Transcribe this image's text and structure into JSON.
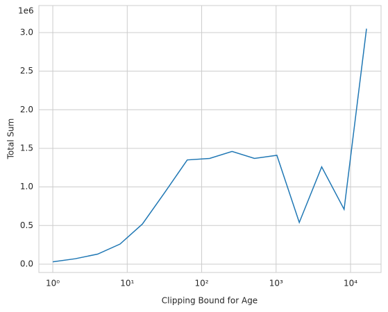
{
  "chart_data": {
    "type": "line",
    "xlabel": "Clipping Bound for Age",
    "ylabel": "Total Sum",
    "y_offset_label": "1e6",
    "x": [
      1,
      2,
      4,
      8,
      16,
      32,
      64,
      128,
      256,
      512,
      1024,
      2048,
      4096,
      8192,
      16384
    ],
    "series": [
      {
        "color": "#1f77b4",
        "values": [
          0.03,
          0.07,
          0.13,
          0.26,
          0.52,
          0.93,
          1.35,
          1.37,
          1.46,
          1.37,
          1.41,
          0.54,
          1.26,
          0.71,
          3.05
        ]
      }
    ],
    "xscale": "log",
    "xlim": [
      0.65,
      25700
    ],
    "ylim": [
      -0.108,
      3.35
    ],
    "xticks": [
      {
        "value": 1,
        "label": "10⁰"
      },
      {
        "value": 10,
        "label": "10¹"
      },
      {
        "value": 100,
        "label": "10²"
      },
      {
        "value": 1000,
        "label": "10³"
      },
      {
        "value": 10000,
        "label": "10⁴"
      }
    ],
    "yticks": [
      {
        "value": 0,
        "label": "0.0"
      },
      0.5,
      {
        "value": 1,
        "label": "1.0"
      },
      1.5,
      {
        "value": 2,
        "label": "2.0"
      },
      2.5,
      {
        "value": 3,
        "label": "3.0"
      }
    ],
    "grid": true
  }
}
